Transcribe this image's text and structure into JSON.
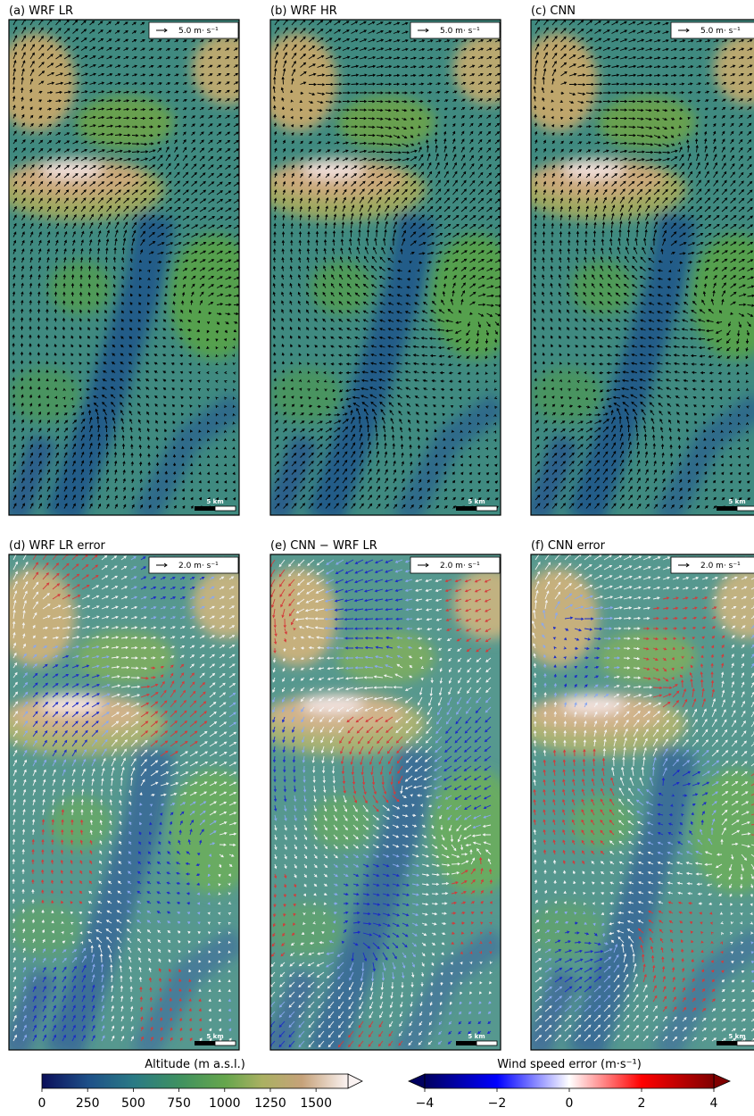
{
  "panels": [
    {
      "title": "(a) WRF LR",
      "ref_label": "5.0 m· s⁻¹",
      "scale_label": "5 km"
    },
    {
      "title": "(b) WRF HR",
      "ref_label": "5.0 m· s⁻¹",
      "scale_label": "5 km"
    },
    {
      "title": "(c) CNN",
      "ref_label": "5.0 m· s⁻¹",
      "scale_label": "5 km"
    },
    {
      "title": "(d) WRF LR error",
      "ref_label": "2.0 m· s⁻¹",
      "scale_label": "5 km"
    },
    {
      "title": "(e) CNN − WRF LR",
      "ref_label": "2.0 m· s⁻¹",
      "scale_label": "5 km"
    },
    {
      "title": "(f) CNN error",
      "ref_label": "2.0 m· s⁻¹",
      "scale_label": "5 km"
    }
  ],
  "colorbars": [
    {
      "label": "Altitude (m a.s.l.)",
      "lim": [
        0,
        1675
      ],
      "ticks": [
        0,
        250,
        500,
        750,
        1000,
        1250,
        1500
      ]
    },
    {
      "label": "Wind speed error (m·s⁻¹)",
      "lim": [
        -4,
        4
      ],
      "ticks": [
        {
          "value": -4,
          "label": "−4"
        },
        {
          "value": -2,
          "label": "−2"
        },
        0,
        2,
        4
      ]
    }
  ]
}
